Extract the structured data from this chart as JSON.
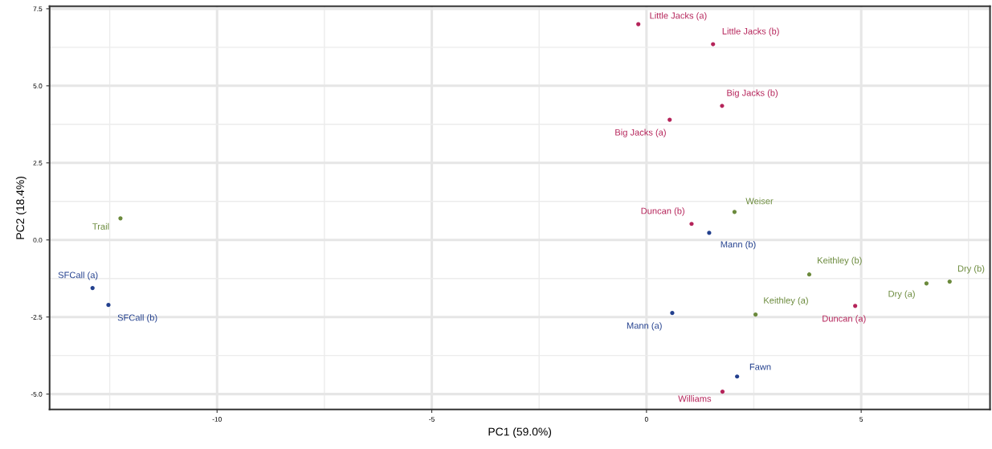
{
  "chart_data": {
    "type": "scatter",
    "xlabel": "PC1 (59.0%)",
    "ylabel": "PC2 (18.4%)",
    "xlim": [
      -13.9,
      8.0
    ],
    "ylim": [
      -5.5,
      7.58
    ],
    "xticks": [
      -10,
      -5,
      0,
      5
    ],
    "yticks": [
      {
        "value": -5,
        "label": "-5.0"
      },
      {
        "value": -2.5,
        "label": "-2.5"
      },
      {
        "value": 0,
        "label": "0.0"
      },
      {
        "value": 2.5,
        "label": "2.5"
      },
      {
        "value": 5,
        "label": "5.0"
      },
      {
        "value": 7.5,
        "label": "7.5"
      }
    ],
    "grid": true,
    "marker": "circle",
    "series": [
      {
        "color": "#b5245a",
        "x": [
          -0.19,
          1.55,
          1.76,
          0.54,
          1.05,
          4.86,
          1.77
        ],
        "values": [
          7.0,
          6.35,
          4.35,
          3.9,
          0.52,
          -2.14,
          -4.92
        ]
      },
      {
        "color": "#23408e",
        "x": [
          1.46,
          -12.9,
          -12.53,
          0.6,
          2.11
        ],
        "values": [
          0.23,
          -1.56,
          -2.11,
          -2.37,
          -4.43
        ]
      },
      {
        "color": "#6b8a3c",
        "x": [
          2.05,
          -12.25,
          3.79,
          7.06,
          6.52,
          2.54
        ],
        "values": [
          0.91,
          0.7,
          -1.12,
          -1.35,
          -1.41,
          -2.42
        ]
      }
    ],
    "annotations": [
      {
        "text": "Little Jacks (a)",
        "x": -0.19,
        "y": 7.0
      },
      {
        "text": "Little Jacks (b)",
        "x": 1.55,
        "y": 6.35
      },
      {
        "text": "Big Jacks (b)",
        "x": 1.76,
        "y": 4.35
      },
      {
        "text": "Big Jacks (a)",
        "x": 0.54,
        "y": 3.9
      },
      {
        "text": "Weiser",
        "x": 2.05,
        "y": 0.91
      },
      {
        "text": "Duncan (b)",
        "x": 1.05,
        "y": 0.52
      },
      {
        "text": "Mann (b)",
        "x": 1.46,
        "y": 0.23
      },
      {
        "text": "Trail",
        "x": -12.25,
        "y": 0.7
      },
      {
        "text": "SFCall (a)",
        "x": -12.9,
        "y": -1.56
      },
      {
        "text": "SFCall (b)",
        "x": -12.53,
        "y": -2.11
      },
      {
        "text": "Keithley (b)",
        "x": 3.79,
        "y": -1.12
      },
      {
        "text": "Dry (b)",
        "x": 7.06,
        "y": -1.35
      },
      {
        "text": "Dry (a)",
        "x": 6.52,
        "y": -1.41
      },
      {
        "text": "Duncan (a)",
        "x": 4.86,
        "y": -2.14
      },
      {
        "text": "Keithley (a)",
        "x": 2.54,
        "y": -2.42
      },
      {
        "text": "Mann (a)",
        "x": 0.6,
        "y": -2.37
      },
      {
        "text": "Fawn",
        "x": 2.11,
        "y": -4.43
      },
      {
        "text": "Williams",
        "x": 1.77,
        "y": -4.92
      }
    ]
  }
}
